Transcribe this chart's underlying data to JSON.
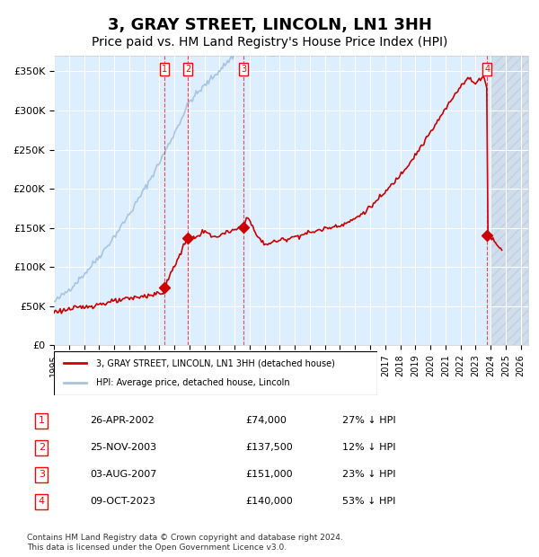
{
  "title": "3, GRAY STREET, LINCOLN, LN1 3HH",
  "subtitle": "Price paid vs. HM Land Registry's House Price Index (HPI)",
  "title_fontsize": 13,
  "subtitle_fontsize": 10,
  "ylabel_ticks": [
    "£0",
    "£50K",
    "£100K",
    "£150K",
    "£200K",
    "£250K",
    "£300K",
    "£350K"
  ],
  "ylabel_values": [
    0,
    50000,
    100000,
    150000,
    200000,
    250000,
    300000,
    350000
  ],
  "ylim": [
    0,
    370000
  ],
  "xlim_start": 1995.0,
  "xlim_end": 2026.5,
  "hpi_color": "#a8c4e0",
  "price_color": "#cc0000",
  "bg_color": "#ddeeff",
  "transactions": [
    {
      "id": 1,
      "date": "26-APR-2002",
      "x": 2002.32,
      "price": 74000,
      "pct": "27%",
      "dir": "↓"
    },
    {
      "id": 2,
      "date": "25-NOV-2003",
      "x": 2003.9,
      "price": 137500,
      "pct": "12%",
      "dir": "↓"
    },
    {
      "id": 3,
      "date": "03-AUG-2007",
      "x": 2007.6,
      "price": 151000,
      "pct": "23%",
      "dir": "↓"
    },
    {
      "id": 4,
      "date": "09-OCT-2023",
      "x": 2023.78,
      "price": 140000,
      "pct": "53%",
      "dir": "↓"
    }
  ],
  "legend_line1": "3, GRAY STREET, LINCOLN, LN1 3HH (detached house)",
  "legend_line2": "HPI: Average price, detached house, Lincoln",
  "footer": "Contains HM Land Registry data © Crown copyright and database right 2024.\nThis data is licensed under the Open Government Licence v3.0.",
  "hatch_color": "#aaaaaa",
  "future_cutoff": 2024.0
}
